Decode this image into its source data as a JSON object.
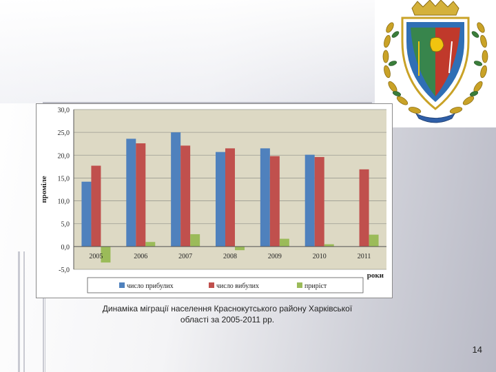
{
  "chart_data": {
    "type": "bar",
    "categories": [
      "2005",
      "2006",
      "2007",
      "2008",
      "2009",
      "2010",
      "2011"
    ],
    "series": [
      {
        "name": "число прибулих",
        "color": "#4f81bd",
        "values": [
          14.2,
          23.6,
          25.0,
          20.7,
          21.5,
          20.1,
          null
        ]
      },
      {
        "name": "число вибулих",
        "color": "#c0504d",
        "values": [
          17.7,
          22.6,
          22.1,
          21.5,
          19.8,
          19.6,
          16.9
        ]
      },
      {
        "name": "приріст",
        "color": "#9bbb59",
        "values": [
          -3.5,
          1.0,
          2.7,
          -0.8,
          1.7,
          0.5,
          2.6
        ]
      }
    ],
    "y_ticks": [
      "30,0",
      "25,0",
      "20,0",
      "15,0",
      "10,0",
      "5,0",
      "0,0",
      "-5,0"
    ],
    "ylim": [
      -5,
      30
    ],
    "ylabel": "проміле",
    "xlabel": "роки",
    "grid": true,
    "legend_position": "bottom",
    "plot_background": "#ddd9c4"
  },
  "caption": {
    "line1": "Динаміка міграції населення Краснокутського району Харківської",
    "line2": "області за 2005-2011 рр."
  },
  "page_number": "14",
  "emblem": {
    "icon": "coat-of-arms-icon"
  }
}
